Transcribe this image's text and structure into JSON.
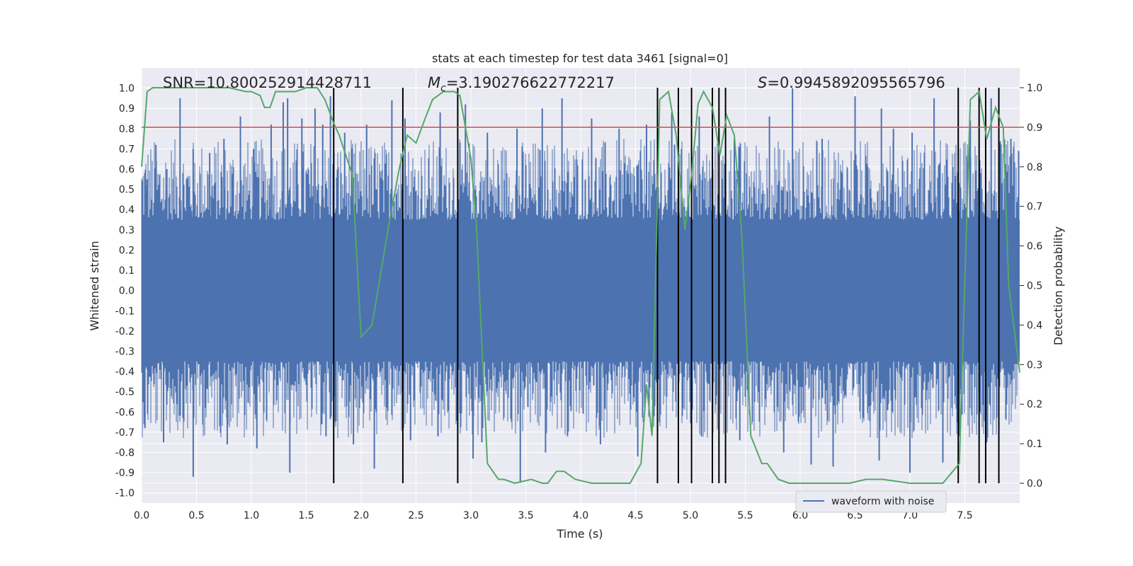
{
  "chart_data": {
    "type": "line",
    "title": "stats at each timestep for test data 3461 [signal=0]",
    "xlabel": "Time (s)",
    "ylabel": "Whitened strain",
    "ylabel_right": "Detection probability",
    "xlim": [
      0.0,
      8.0
    ],
    "ylim": [
      -1.05,
      1.1
    ],
    "ylim_right": [
      -0.05,
      1.05
    ],
    "x_ticks": [
      "0.0",
      "0.5",
      "1.0",
      "1.5",
      "2.0",
      "2.5",
      "3.0",
      "3.5",
      "4.0",
      "4.5",
      "5.0",
      "5.5",
      "6.0",
      "6.5",
      "7.0",
      "7.5"
    ],
    "y_ticks": [
      "1.0",
      "0.9",
      "0.8",
      "0.7",
      "0.6",
      "0.5",
      "0.4",
      "0.3",
      "0.2",
      "0.1",
      "0.0",
      "-0.1",
      "-0.2",
      "-0.3",
      "-0.4",
      "-0.5",
      "-0.6",
      "-0.7",
      "-0.8",
      "-0.9",
      "-1.0"
    ],
    "y_ticks_right": [
      "1.0",
      "0.9",
      "0.8",
      "0.7",
      "0.6",
      "0.5",
      "0.4",
      "0.3",
      "0.2",
      "0.1",
      "0.0"
    ],
    "stats": {
      "snr_label": "SNR=",
      "snr_value": "10.800252914428711",
      "mc_symbol": "M",
      "mc_subscript": "c",
      "mc_value": "=3.190276622772217",
      "s_symbol": "S",
      "s_value": "=0.9945892095565796"
    },
    "legend": {
      "label": "waveform with noise",
      "position": "lower-right"
    },
    "threshold": 0.9,
    "trigger_times": [
      1.75,
      2.38,
      2.88,
      4.7,
      4.89,
      5.01,
      5.2,
      5.26,
      5.32,
      7.44,
      7.63,
      7.69,
      7.81
    ],
    "series": [
      {
        "name": "waveform with noise",
        "color": "#4c72b0",
        "axis": "left",
        "envelope_level": 0.35,
        "peak_times": [
          0.05,
          0.13,
          0.23,
          0.35,
          0.47,
          0.62,
          0.75,
          0.9,
          1.02,
          1.18,
          1.29,
          1.33,
          1.46,
          1.58,
          1.65,
          1.72,
          1.85,
          2.05,
          2.28,
          2.4,
          2.72,
          2.95,
          3.15,
          3.42,
          3.65,
          3.83,
          4.1,
          4.35,
          4.6,
          4.83,
          5.08,
          5.4,
          5.72,
          5.93,
          6.2,
          6.5,
          6.74,
          6.85,
          7.02,
          7.22,
          7.55,
          7.74,
          7.92
        ],
        "peak_values": [
          0.55,
          0.72,
          0.6,
          0.95,
          0.7,
          0.68,
          0.75,
          0.86,
          0.7,
          0.82,
          0.93,
          0.95,
          0.85,
          0.9,
          0.82,
          0.96,
          0.78,
          0.82,
          0.94,
          0.85,
          0.88,
          0.92,
          0.78,
          0.8,
          0.9,
          0.95,
          0.85,
          0.8,
          0.82,
          0.88,
          0.86,
          0.75,
          0.86,
          1.0,
          0.75,
          0.96,
          0.9,
          0.8,
          0.78,
          0.95,
          0.84,
          0.95,
          0.75
        ],
        "trough_times": [
          0.03,
          0.2,
          0.47,
          0.78,
          1.05,
          1.35,
          1.68,
          1.93,
          2.12,
          2.45,
          2.7,
          3.02,
          3.1,
          3.45,
          3.68,
          3.88,
          4.18,
          4.52,
          4.7,
          5.1,
          5.45,
          5.85,
          6.1,
          6.3,
          6.72,
          7.0,
          7.3,
          7.45,
          7.7
        ],
        "trough_values": [
          -0.68,
          -0.75,
          -0.92,
          -0.76,
          -0.78,
          -0.9,
          -0.72,
          -0.76,
          -0.88,
          -0.74,
          -0.72,
          -0.83,
          -0.75,
          -0.95,
          -0.8,
          -0.72,
          -0.76,
          -0.82,
          -0.95,
          -0.72,
          -0.74,
          -0.8,
          -0.86,
          -0.87,
          -0.84,
          -0.9,
          -0.85,
          -0.72,
          -0.75
        ]
      },
      {
        "name": "detection probability",
        "color": "#55a868",
        "axis": "right",
        "x": [
          0.0,
          0.05,
          0.1,
          0.3,
          0.5,
          0.8,
          0.95,
          1.0,
          1.08,
          1.12,
          1.17,
          1.22,
          1.27,
          1.35,
          1.4,
          1.5,
          1.6,
          1.67,
          1.75,
          1.8,
          1.92,
          2.0,
          2.1,
          2.25,
          2.35,
          2.42,
          2.5,
          2.58,
          2.65,
          2.75,
          2.85,
          2.9,
          3.0,
          3.05,
          3.15,
          3.25,
          3.3,
          3.4,
          3.55,
          3.65,
          3.7,
          3.78,
          3.85,
          3.95,
          4.1,
          4.3,
          4.45,
          4.55,
          4.6,
          4.65,
          4.72,
          4.8,
          4.87,
          4.95,
          5.01,
          5.07,
          5.12,
          5.2,
          5.27,
          5.33,
          5.4,
          5.47,
          5.55,
          5.65,
          5.7,
          5.75,
          5.8,
          5.9,
          6.2,
          6.45,
          6.6,
          6.75,
          7.0,
          7.1,
          7.3,
          7.45,
          7.55,
          7.63,
          7.7,
          7.78,
          7.85,
          7.9,
          8.0
        ],
        "y": [
          0.8,
          0.99,
          1.0,
          1.0,
          1.0,
          1.0,
          0.99,
          0.99,
          0.98,
          0.95,
          0.95,
          0.99,
          0.99,
          0.99,
          0.99,
          1.0,
          1.0,
          0.97,
          0.91,
          0.88,
          0.78,
          0.37,
          0.4,
          0.65,
          0.8,
          0.88,
          0.86,
          0.92,
          0.97,
          0.99,
          0.99,
          0.98,
          0.82,
          0.65,
          0.05,
          0.01,
          0.01,
          0.0,
          0.01,
          0.0,
          0.0,
          0.03,
          0.03,
          0.01,
          0.0,
          0.0,
          0.0,
          0.05,
          0.25,
          0.12,
          0.97,
          0.99,
          0.88,
          0.64,
          0.78,
          0.96,
          0.99,
          0.95,
          0.83,
          0.93,
          0.88,
          0.62,
          0.12,
          0.05,
          0.05,
          0.03,
          0.01,
          0.0,
          0.0,
          0.0,
          0.01,
          0.01,
          0.0,
          0.0,
          0.0,
          0.05,
          0.97,
          0.99,
          0.87,
          0.95,
          0.9,
          0.5,
          0.28
        ]
      }
    ]
  }
}
